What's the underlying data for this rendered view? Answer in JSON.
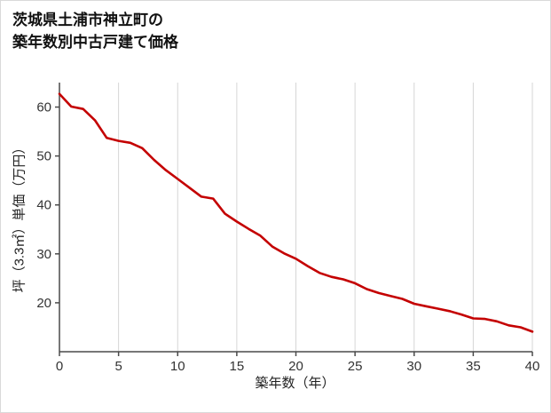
{
  "title": {
    "line1": "茨城県土浦市神立町の",
    "line2": "築年数別中古戸建て価格"
  },
  "chart_data": {
    "type": "line",
    "title": "茨城県土浦市神立町の築年数別中古戸建て価格",
    "xlabel": "築年数（年）",
    "ylabel": "坪（3.3㎡）単価（万円）",
    "x": [
      0,
      1,
      2,
      3,
      4,
      5,
      6,
      7,
      8,
      9,
      10,
      11,
      12,
      13,
      14,
      15,
      16,
      17,
      18,
      19,
      20,
      21,
      22,
      23,
      24,
      25,
      26,
      27,
      28,
      29,
      30,
      31,
      32,
      33,
      34,
      35,
      36,
      37,
      38,
      39,
      40
    ],
    "values": [
      62.7,
      60.1,
      59.6,
      57.3,
      53.7,
      53.1,
      52.7,
      51.6,
      49.2,
      47.1,
      45.3,
      43.5,
      41.7,
      41.3,
      38.2,
      36.6,
      35.1,
      33.7,
      31.5,
      30.1,
      29.0,
      27.5,
      26.1,
      25.3,
      24.8,
      24.0,
      22.8,
      22.0,
      21.4,
      20.8,
      19.8,
      19.3,
      18.8,
      18.3,
      17.6,
      16.8,
      16.7,
      16.2,
      15.4,
      15.0,
      14.1
    ],
    "xlim": [
      0,
      40
    ],
    "ylim": [
      10,
      65
    ],
    "x_ticks": [
      0,
      5,
      10,
      15,
      20,
      25,
      30,
      35,
      40
    ],
    "y_ticks": [
      20,
      30,
      40,
      50,
      60
    ],
    "grid": "vertical-only",
    "legend": "none",
    "line_color": "#c40000",
    "colors": {
      "grid": "#d6d6d6",
      "axis": "#4a4a4a",
      "text": "#333333",
      "background": "#ffffff",
      "border": "#d9d9d9"
    }
  }
}
